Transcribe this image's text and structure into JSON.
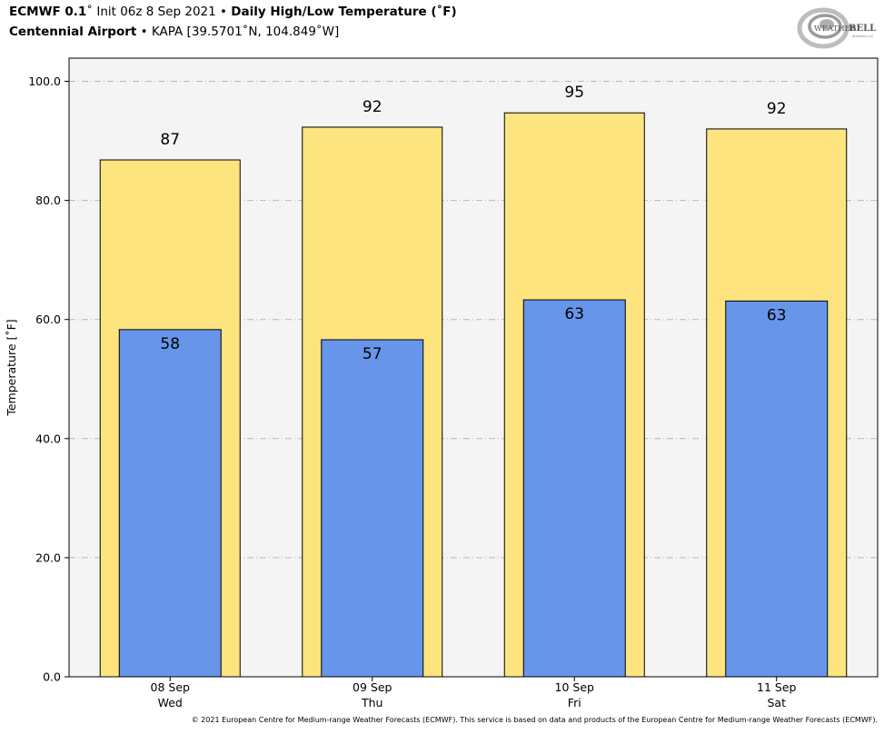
{
  "header": {
    "line1": {
      "model": "ECMWF 0.1",
      "init": "˚ Init 06z 8 Sep 2021",
      "sep": " • ",
      "product": "Daily High/Low Temperature (˚F)"
    },
    "line2": {
      "station": "Centennial Airport",
      "sep": " • ",
      "location": "KAPA [39.5701˚N, 104.849˚W]"
    }
  },
  "logo": {
    "text_main": "WEATHER",
    "text_bold": "BELL",
    "text_small": "Analytics LLC"
  },
  "footer": "© 2021 European Centre for Medium-range Weather Forecasts (ECMWF). This service is based on data and products of the European Centre for Medium-range Weather Forecasts (ECMWF).",
  "colors": {
    "high": "#fde47f",
    "low": "#6795ea",
    "plot_bg": "#f4f4f4",
    "grid": "#b8b8b8"
  },
  "chart_data": {
    "type": "bar",
    "categories": [
      "08 Sep\nWed",
      "09 Sep\nThu",
      "10 Sep\nFri",
      "11 Sep\nSat"
    ],
    "series": [
      {
        "name": "",
        "values": [
          86.8,
          92.3,
          94.7,
          92.0
        ],
        "labels": [
          "87",
          "92",
          "95",
          "92"
        ]
      },
      {
        "name": "",
        "values": [
          58.3,
          56.6,
          63.3,
          63.1
        ],
        "labels": [
          "58",
          "57",
          "63",
          "63"
        ]
      }
    ],
    "ylabel": "Temperature [˚F]",
    "ylim": [
      0,
      100
    ],
    "yticks": [
      0,
      20,
      40,
      60,
      80,
      100
    ],
    "ytick_labels": [
      "0.0",
      "20.0",
      "40.0",
      "60.0",
      "80.0",
      "100.0"
    ],
    "grid": true
  }
}
